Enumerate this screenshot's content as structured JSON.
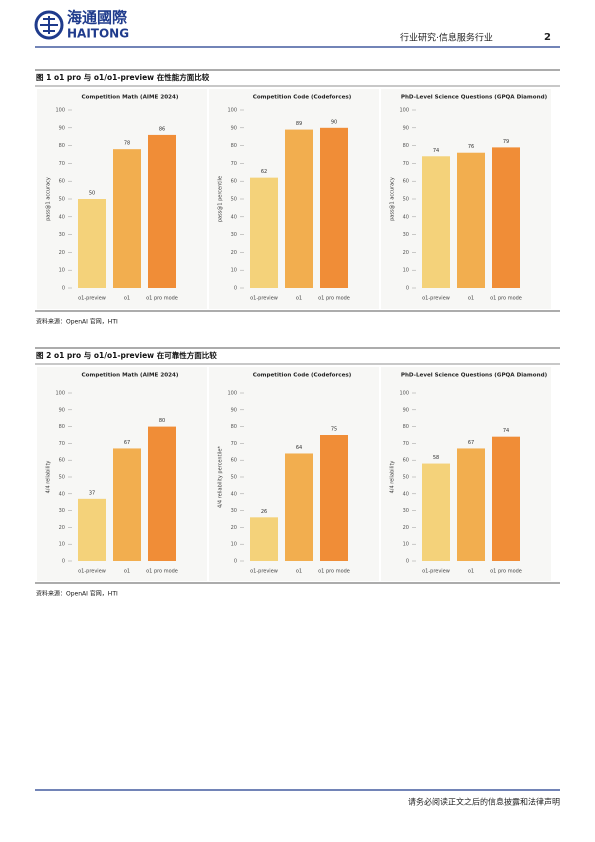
{
  "header": {
    "logo_cn": "海通國際",
    "logo_en": "HAITONG",
    "section": "行业研究·信息服务行业",
    "page": "2"
  },
  "figures": [
    {
      "title": "图 1 o1 pro 与 o1/o1-preview 在性能方面比较",
      "source": "资料来源：OpenAI 官网，HTI",
      "charts": [
        {
          "type": "bar",
          "title": "Competition Math (AIME 2024)",
          "ylabel": "pass@1 accuracy",
          "categories": [
            "o1-preview",
            "o1",
            "o1 pro mode"
          ],
          "values": [
            50,
            78,
            86
          ],
          "colors": [
            "#f4d27a",
            "#f2ae4f",
            "#f08d37"
          ],
          "ylim": [
            0,
            100
          ],
          "yticks": [
            0,
            10,
            20,
            30,
            40,
            50,
            60,
            70,
            80,
            90,
            100
          ]
        },
        {
          "type": "bar",
          "title": "Competition Code (Codeforces)",
          "ylabel": "pass@1 percentile",
          "categories": [
            "o1-preview",
            "o1",
            "o1 pro mode"
          ],
          "values": [
            62,
            89,
            90
          ],
          "colors": [
            "#f4d27a",
            "#f2ae4f",
            "#f08d37"
          ],
          "ylim": [
            0,
            100
          ],
          "yticks": [
            0,
            10,
            20,
            30,
            40,
            50,
            60,
            70,
            80,
            90,
            100
          ]
        },
        {
          "type": "bar",
          "title": "PhD-Level Science Questions (GPQA Diamond)",
          "ylabel": "pass@1 accuracy",
          "categories": [
            "o1-preview",
            "o1",
            "o1 pro mode"
          ],
          "values": [
            74,
            76,
            79
          ],
          "colors": [
            "#f4d27a",
            "#f2ae4f",
            "#f08d37"
          ],
          "ylim": [
            0,
            100
          ],
          "yticks": [
            0,
            10,
            20,
            30,
            40,
            50,
            60,
            70,
            80,
            90,
            100
          ]
        }
      ]
    },
    {
      "title": "图 2 o1 pro 与 o1/o1-preview 在可靠性方面比较",
      "source": "资料来源：OpenAI 官网，HTI",
      "charts": [
        {
          "type": "bar",
          "title": "Competition Math (AIME 2024)",
          "ylabel": "4/4 reliability",
          "categories": [
            "o1-preview",
            "o1",
            "o1 pro mode"
          ],
          "values": [
            37,
            67,
            80
          ],
          "colors": [
            "#f4d27a",
            "#f2ae4f",
            "#f08d37"
          ],
          "ylim": [
            0,
            100
          ],
          "yticks": [
            0,
            10,
            20,
            30,
            40,
            50,
            60,
            70,
            80,
            90,
            100
          ]
        },
        {
          "type": "bar",
          "title": "Competition Code (Codeforces)",
          "ylabel": "4/4 reliability percentile*",
          "categories": [
            "o1-preview",
            "o1",
            "o1 pro mode"
          ],
          "values": [
            26,
            64,
            75
          ],
          "colors": [
            "#f4d27a",
            "#f2ae4f",
            "#f08d37"
          ],
          "ylim": [
            0,
            100
          ],
          "yticks": [
            0,
            10,
            20,
            30,
            40,
            50,
            60,
            70,
            80,
            90,
            100
          ]
        },
        {
          "type": "bar",
          "title": "PhD-Level Science Questions (GPQA Diamond)",
          "ylabel": "4/4 reliability",
          "categories": [
            "o1-preview",
            "o1",
            "o1 pro mode"
          ],
          "values": [
            58,
            67,
            74
          ],
          "colors": [
            "#f4d27a",
            "#f2ae4f",
            "#f08d37"
          ],
          "ylim": [
            0,
            100
          ],
          "yticks": [
            0,
            10,
            20,
            30,
            40,
            50,
            60,
            70,
            80,
            90,
            100
          ]
        }
      ]
    }
  ],
  "footer": "请务必阅读正文之后的信息披露和法律声明"
}
